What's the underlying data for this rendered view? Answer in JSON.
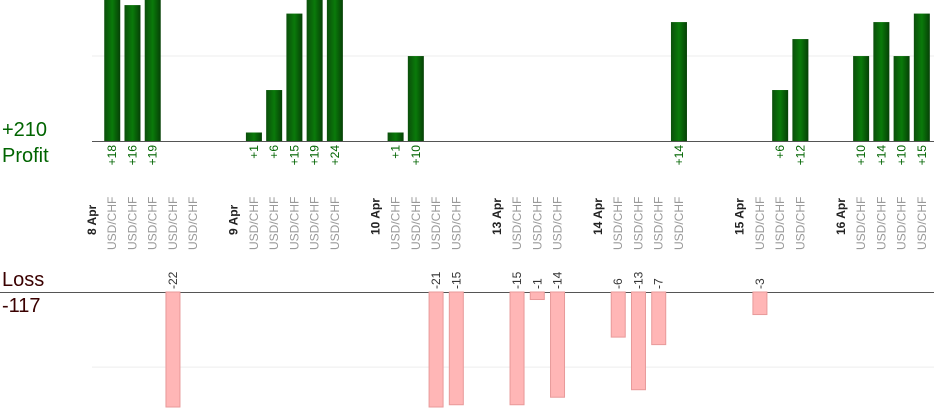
{
  "chart_data": {
    "type": "bar",
    "profit_label": "Profit",
    "loss_label": "Loss",
    "profit_total": {
      "value": 210,
      "label": "+210"
    },
    "loss_total": -117,
    "profit_ylim": [
      0,
      16.6
    ],
    "loss_ylim": [
      -15.3,
      0
    ],
    "profit_grid": [
      10
    ],
    "loss_grid": [
      -10
    ],
    "profit_color": "#006400",
    "loss_color": "#ffb6b6",
    "groups": [
      {
        "date": "8 Apr",
        "trades": [
          {
            "symbol": "USD/CHF",
            "value": 18,
            "value_label": "+18"
          },
          {
            "symbol": "USD/CHF",
            "value": 16,
            "value_label": "+16"
          },
          {
            "symbol": "USD/CHF",
            "value": 19,
            "value_label": "+19"
          },
          {
            "symbol": "USD/CHF",
            "value": -22
          },
          {
            "symbol": "USD/CHF",
            "value": null
          }
        ]
      },
      {
        "date": "9 Apr",
        "trades": [
          {
            "symbol": "USD/CHF",
            "value": 1,
            "value_label": "+1"
          },
          {
            "symbol": "USD/CHF",
            "value": 6,
            "value_label": "+6"
          },
          {
            "symbol": "USD/CHF",
            "value": 15,
            "value_label": "+15"
          },
          {
            "symbol": "USD/CHF",
            "value": 19,
            "value_label": "+19"
          },
          {
            "symbol": "USD/CHF",
            "value": 24,
            "value_label": "+24"
          }
        ]
      },
      {
        "date": "10 Apr",
        "trades": [
          {
            "symbol": "USD/CHF",
            "value": 1,
            "value_label": "+1"
          },
          {
            "symbol": "USD/CHF",
            "value": 10,
            "value_label": "+10"
          },
          {
            "symbol": "USD/CHF",
            "value": -21
          },
          {
            "symbol": "USD/CHF",
            "value": -15
          }
        ]
      },
      {
        "date": "13 Apr",
        "trades": [
          {
            "symbol": "USD/CHF",
            "value": -15
          },
          {
            "symbol": "USD/CHF",
            "value": -1
          },
          {
            "symbol": "USD/CHF",
            "value": -14
          }
        ]
      },
      {
        "date": "14 Apr",
        "trades": [
          {
            "symbol": "USD/CHF",
            "value": -6
          },
          {
            "symbol": "USD/CHF",
            "value": -13
          },
          {
            "symbol": "USD/CHF",
            "value": -7
          },
          {
            "symbol": "USD/CHF",
            "value": 14,
            "value_label": "+14"
          }
        ]
      },
      {
        "date": "15 Apr",
        "trades": [
          {
            "symbol": "USD/CHF",
            "value": -3
          },
          {
            "symbol": "USD/CHF",
            "value": 6,
            "value_label": "+6"
          },
          {
            "symbol": "USD/CHF",
            "value": 12,
            "value_label": "+12"
          }
        ]
      },
      {
        "date": "16 Apr",
        "trades": [
          {
            "symbol": "USD/CHF",
            "value": 10,
            "value_label": "+10"
          },
          {
            "symbol": "USD/CHF",
            "value": 14,
            "value_label": "+14"
          },
          {
            "symbol": "USD/CHF",
            "value": 10,
            "value_label": "+10"
          },
          {
            "symbol": "USD/CHF",
            "value": 15,
            "value_label": "+15"
          }
        ]
      }
    ]
  }
}
